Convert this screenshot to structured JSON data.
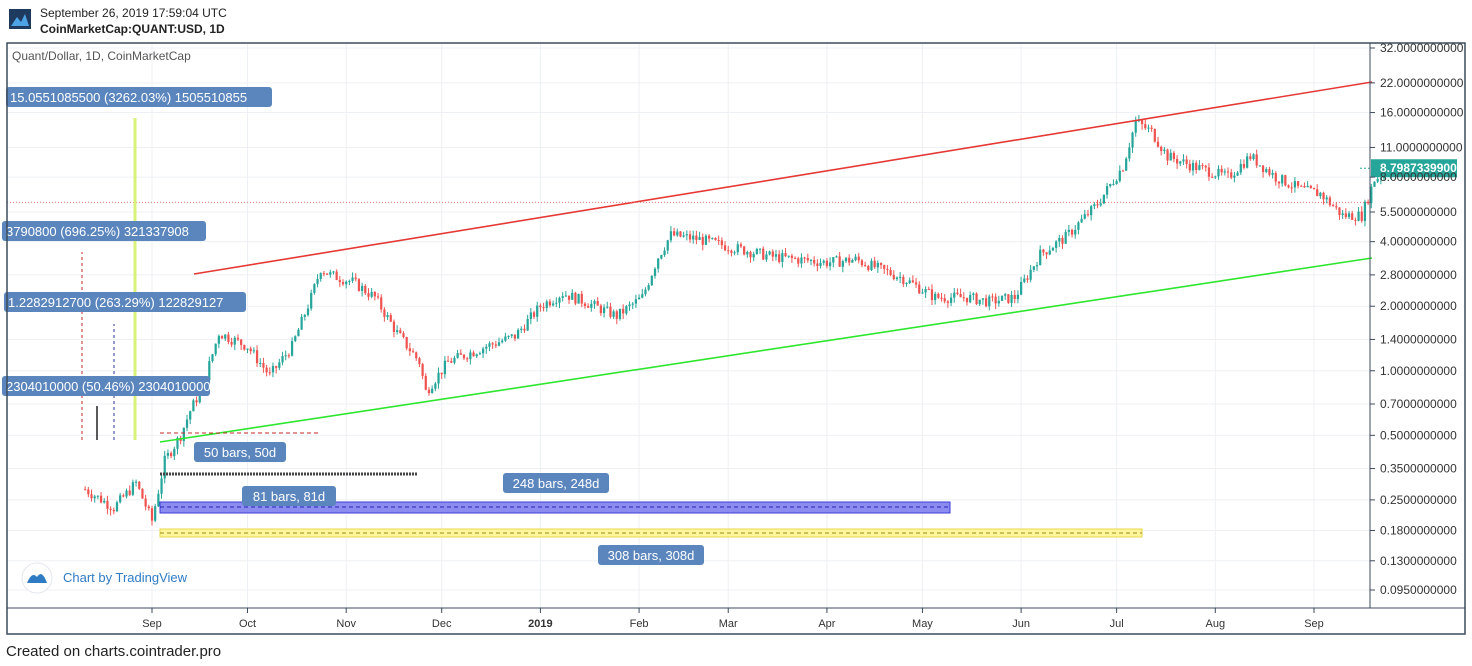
{
  "header": {
    "date_line": "September 26, 2019 17:59:04 UTC",
    "symbol_line": "CoinMarketCap:QUANT:USD, 1D"
  },
  "footer": "Created on charts.cointrader.pro",
  "colors": {
    "up": "#26a69a",
    "down": "#ef5350",
    "red_channel": "#e53935",
    "green_channel": "#2ee62e",
    "label_bg": "#5b86bd",
    "price_tag": "#26a69a",
    "frame": "#3c4b5c",
    "grid": "#edf0f4"
  },
  "chart_data": {
    "type": "candlestick",
    "title": "Quant/Dollar, 1D, CoinMarketCap",
    "scale": "log",
    "ylim": [
      0.075,
      36
    ],
    "x_tick_labels": [
      "Sep",
      "Oct",
      "Nov",
      "Dec",
      "2019",
      "Feb",
      "Mar",
      "Apr",
      "May",
      "Jun",
      "Jul",
      "Aug",
      "Sep"
    ],
    "y_tick_labels": [
      "32.0000000000",
      "22.0000000000",
      "16.0000000000",
      "11.0000000000",
      "8.0000000000",
      "5.5000000000",
      "4.0000000000",
      "2.8000000000",
      "2.0000000000",
      "1.4000000000",
      "1.0000000000",
      "0.7000000000",
      "0.5000000000",
      "0.3500000000",
      "0.2500000000",
      "0.1800000000",
      "0.1300000000",
      "0.0950000000"
    ],
    "y_tick_values": [
      32,
      22,
      16,
      11,
      8,
      5.5,
      4,
      2.8,
      2,
      1.4,
      1,
      0.7,
      0.5,
      0.35,
      0.25,
      0.18,
      0.13,
      0.095
    ],
    "last_price": {
      "label": "8.7987339900",
      "value": 8.7987
    }
  },
  "price_path": {
    "note_dates": [
      "2018-08-11",
      "2018-08-20",
      "2018-08-27",
      "2018-09-01",
      "2018-09-05",
      "2018-09-10",
      "2018-09-13",
      "2018-09-17",
      "2018-09-22",
      "2018-10-01",
      "2018-10-08",
      "2018-10-15",
      "2018-10-21",
      "2018-10-24",
      "2018-10-27",
      "2018-11-03",
      "2018-11-10",
      "2018-11-17",
      "2018-11-24",
      "2018-11-26",
      "2018-12-03",
      "2018-12-15",
      "2018-12-24",
      "2019-01-01",
      "2019-01-08",
      "2019-01-15",
      "2019-01-25",
      "2019-02-02",
      "2019-02-07",
      "2019-02-11",
      "2019-02-20",
      "2019-03-01",
      "2019-03-15",
      "2019-04-01",
      "2019-04-10",
      "2019-04-25",
      "2019-05-05",
      "2019-05-15",
      "2019-05-22",
      "2019-05-30",
      "2019-06-07",
      "2019-06-15",
      "2019-06-25",
      "2019-07-03",
      "2019-07-07",
      "2019-07-12",
      "2019-07-17",
      "2019-07-25",
      "2019-08-05",
      "2019-08-12",
      "2019-08-20",
      "2019-08-28",
      "2019-09-03",
      "2019-09-10",
      "2019-09-16",
      "2019-09-20",
      "2019-09-26"
    ],
    "values": [
      0.28,
      0.23,
      0.3,
      0.2,
      0.38,
      0.5,
      0.65,
      0.85,
      1.5,
      1.3,
      0.95,
      1.3,
      2.2,
      3.0,
      2.8,
      2.6,
      2.2,
      1.5,
      1.1,
      0.8,
      1.1,
      1.3,
      1.45,
      2.0,
      2.3,
      2.1,
      1.8,
      2.2,
      3.4,
      4.3,
      4.1,
      3.8,
      3.4,
      3.2,
      3.3,
      2.7,
      2.2,
      2.2,
      2.1,
      2.2,
      3.5,
      4.2,
      6.0,
      9.0,
      14.5,
      13.0,
      10.0,
      9.0,
      8.0,
      10.0,
      8.0,
      7.0,
      6.7,
      5.3,
      5.3,
      7.8,
      8.8
    ]
  },
  "annotations": {
    "measure_labels": [
      "15.0551085500 (3262.03%) 1505510855",
      "3790800 (696.25%) 321337908",
      "1.2282912700 (263.29%) 122829127",
      "2304010000 (50.46%) 2304010000"
    ],
    "range_labels": [
      "50 bars, 50d",
      "81 bars, 81d",
      "248 bars, 248d",
      "308 bars, 308d"
    ],
    "tradingview_credit": "Chart by TradingView"
  }
}
